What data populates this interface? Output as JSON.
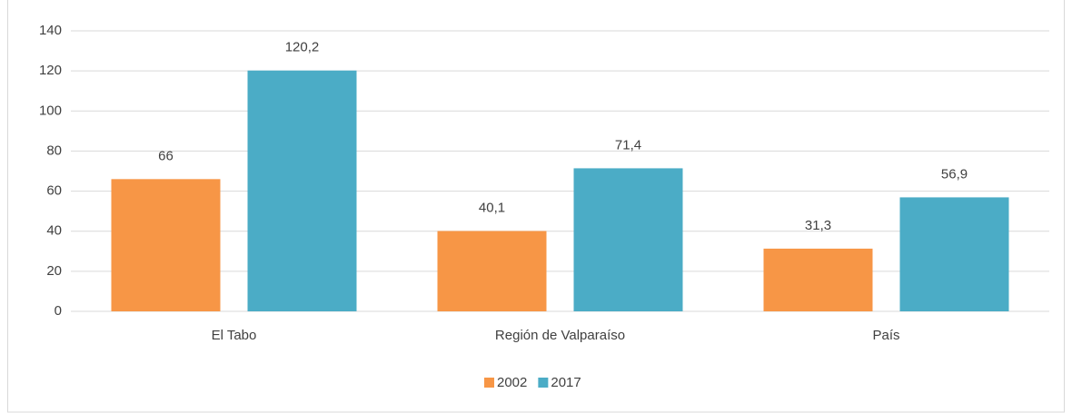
{
  "chart_data": {
    "type": "bar",
    "categories": [
      "El Tabo",
      "Región de Valparaíso",
      "País"
    ],
    "series": [
      {
        "name": "2002",
        "color": "#f79646",
        "values": [
          66,
          40.1,
          31.3
        ],
        "value_labels": [
          "66",
          "40,1",
          "31,3"
        ]
      },
      {
        "name": "2017",
        "color": "#4bacc6",
        "values": [
          120.2,
          71.4,
          56.9
        ],
        "value_labels": [
          "120,2",
          "71,4",
          "56,9"
        ]
      }
    ],
    "ylim": [
      0,
      140
    ],
    "yticks": [
      0,
      20,
      40,
      60,
      80,
      100,
      120,
      140
    ],
    "grid": true,
    "legend": "bottom"
  }
}
